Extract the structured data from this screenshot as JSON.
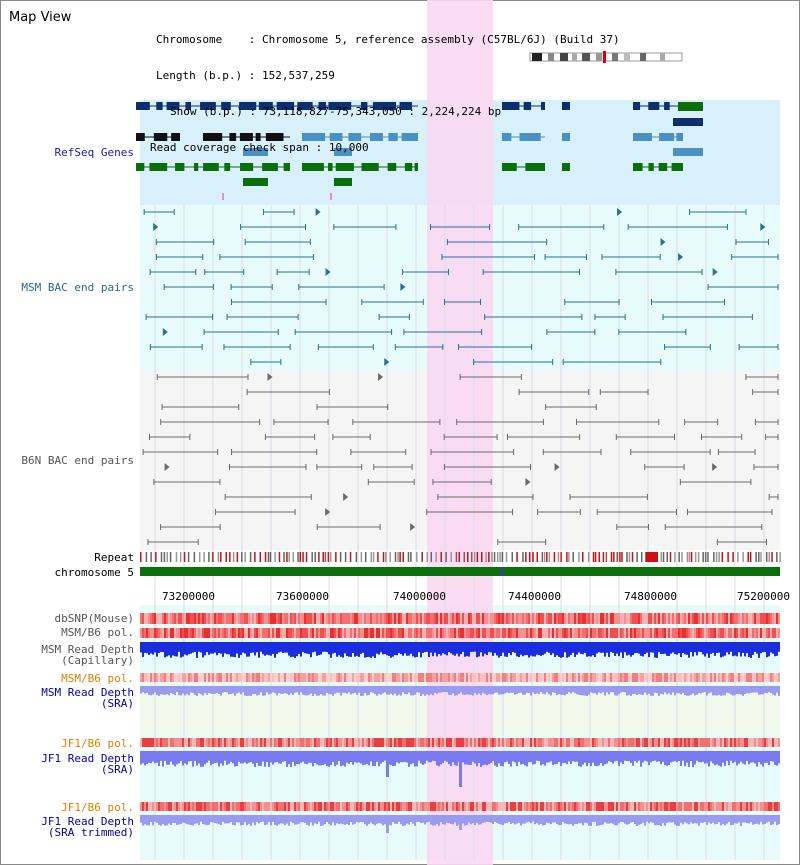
{
  "title": "Map View",
  "info": {
    "chromosome_label": "Chromosome",
    "chromosome_value": "Chromosome 5, reference assembly (C57BL/6J) (Build 37)",
    "length_label": "Length (b.p.)",
    "length_value": "152,537,259",
    "show_label": "Show (b.p.)",
    "show_value": "73,118,827-75,343,050 : 2,224,224 bp",
    "span_label": "Read coverage check span",
    "span_value": "10,000"
  },
  "tracks": {
    "refseq": "RefSeq Genes",
    "msm_bac": "MSM BAC end pairs",
    "b6n_bac": "B6N BAC end pairs",
    "repeat": "Repeat",
    "chromosome": "chromosome 5",
    "dbsnp": "dbSNP(Mouse)",
    "msm_b6_pol": "MSM/B6 pol.",
    "msm_depth_cap_1": "MSM Read Depth",
    "msm_depth_cap_2": "(Capillary)",
    "msm_b6_pol2": "MSM/B6 pol.",
    "msm_depth_sra_1": "MSM Read Depth",
    "msm_depth_sra_2": "(SRA)",
    "jf1_pol": "JF1/B6 pol.",
    "jf1_depth_1": "JF1 Read Depth",
    "jf1_depth_2": "(SRA)",
    "jf1_pol2": "JF1/B6 pol.",
    "jf1_trim_1": "JF1 Read Depth",
    "jf1_trim_2": "(SRA trimmed)"
  },
  "axis": {
    "ticks": [
      "73200000",
      "73600000",
      "74000000",
      "74400000",
      "74800000",
      "75200000"
    ]
  },
  "colors": {
    "refseq_bg": "#d8f0fa",
    "highlight": "#f9d8f2",
    "msm_label": "#2a6b8a",
    "refseq_label": "#1a1aa8",
    "b6n_label": "#555555",
    "orange_label": "#e08000",
    "blue_label": "#0000b0"
  }
}
